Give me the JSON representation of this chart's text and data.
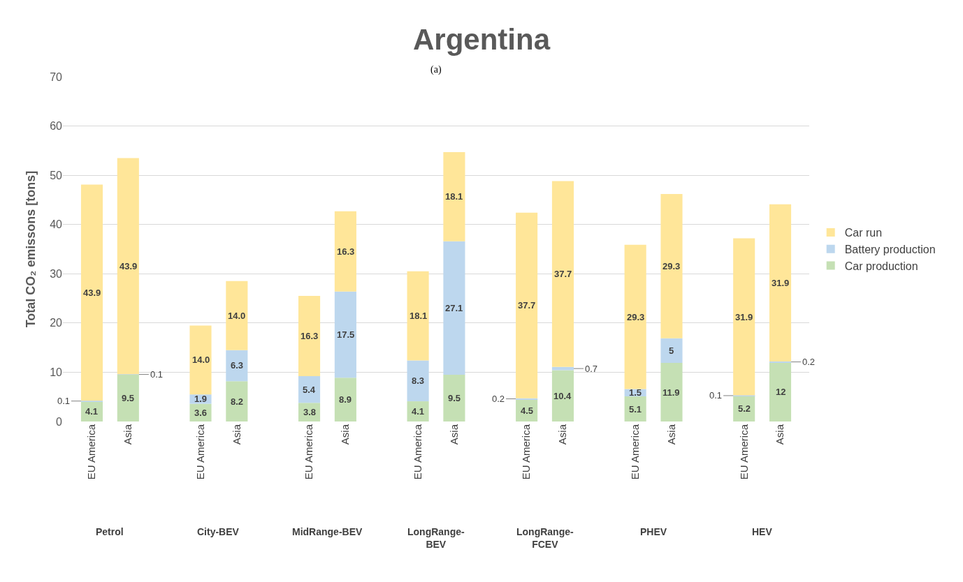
{
  "chart_data": {
    "type": "bar",
    "title": "Argentina",
    "ylabel": "Total CO₂ emissons [tons]",
    "categories": [
      "EU America",
      "Asia",
      "EU America",
      "Asia",
      "EU America",
      "Asia",
      "EU America",
      "Asia",
      "EU America",
      "Asia",
      "EU America",
      "Asia",
      "EU America",
      "Asia"
    ],
    "series": [
      {
        "name": "Car production",
        "color": "#c5e0b4",
        "values": [
          4.1,
          9.5,
          3.6,
          8.2,
          3.8,
          8.9,
          4.1,
          9.5,
          4.5,
          10.4,
          5.1,
          11.9,
          5.2,
          12
        ],
        "value_labels": [
          "4.1",
          "9.5",
          "3.6",
          "8.2",
          "3.8",
          "8.9",
          "4.1",
          "9.5",
          "4.5",
          "10.4",
          "5.1",
          "11.9",
          "5.2",
          "12"
        ]
      },
      {
        "name": "Battery production",
        "color": "#bdd7ee",
        "values": [
          0.1,
          0.1,
          1.9,
          6.3,
          5.4,
          17.5,
          8.3,
          27.1,
          0.2,
          0.7,
          1.5,
          5,
          0.1,
          0.2
        ],
        "value_labels": [
          "0.1",
          "0.1",
          "1.9",
          "6.3",
          "5.4",
          "17.5",
          "8.3",
          "27.1",
          "0.2",
          "0.7",
          "1.5",
          "5",
          "0.1",
          "0.2"
        ]
      },
      {
        "name": "Car run",
        "color": "#ffe699",
        "values": [
          43.9,
          43.9,
          14.0,
          14.0,
          16.3,
          16.3,
          18.1,
          18.1,
          37.7,
          37.7,
          29.3,
          29.3,
          31.9,
          31.9
        ],
        "value_labels": [
          "43.9",
          "43.9",
          "14.0",
          "14.0",
          "16.3",
          "16.3",
          "18.1",
          "18.1",
          "37.7",
          "37.7",
          "29.3",
          "29.3",
          "31.9",
          "31.9"
        ]
      }
    ],
    "stacked": true,
    "ylim": [
      0,
      70
    ],
    "yticks": [
      0,
      10,
      20,
      30,
      40,
      50,
      60,
      70
    ],
    "grid": "y",
    "legend": "right",
    "annotations": [
      "Petrol",
      "City-BEV",
      "MidRange-BEV",
      "LongRange-\nBEV",
      "LongRange-\nFCEV",
      "PHEV",
      "HEV",
      "(a)"
    ]
  }
}
